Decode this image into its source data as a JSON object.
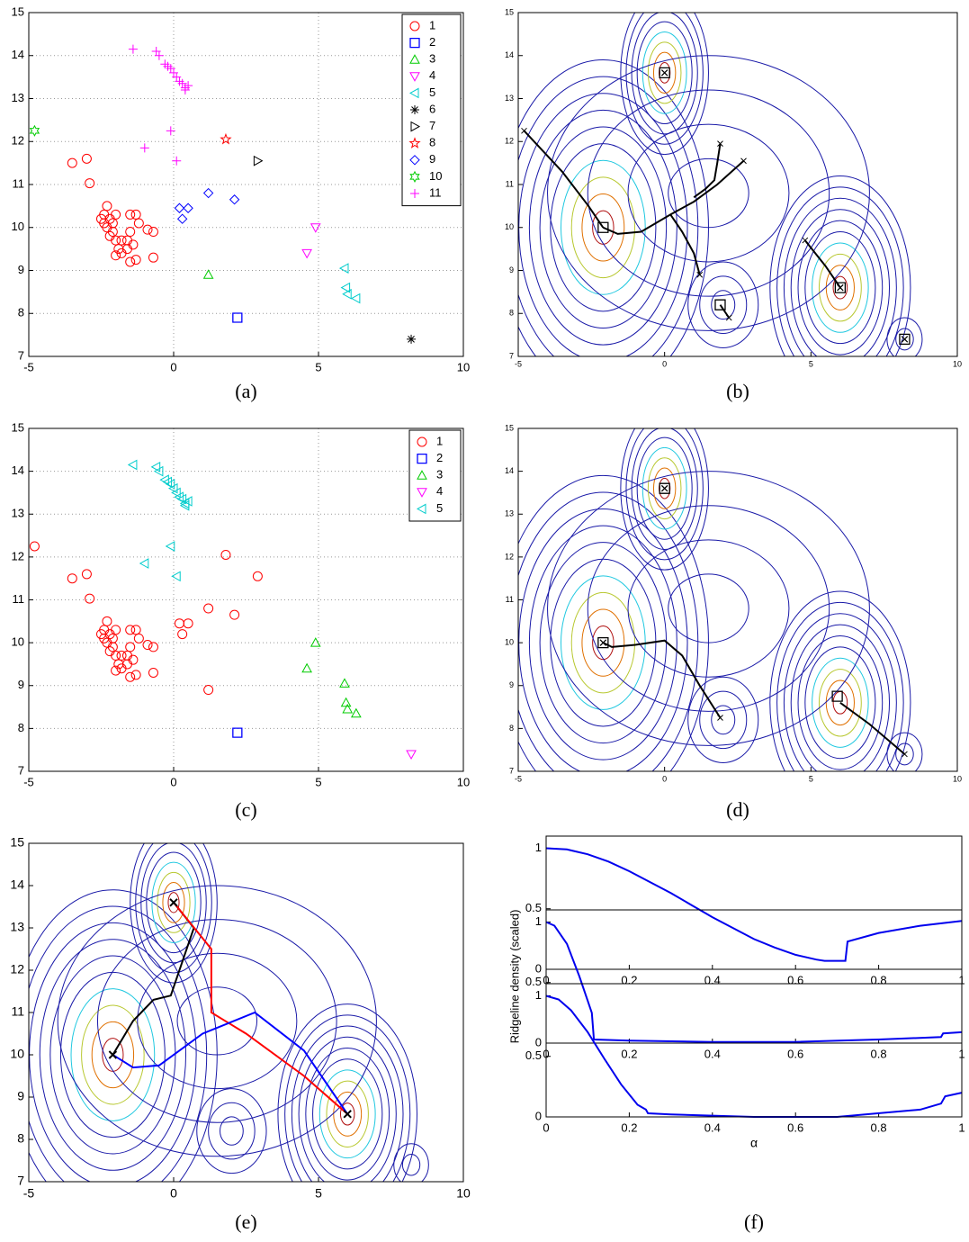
{
  "chart_data": [
    {
      "type": "scatter",
      "caption": "(a)",
      "xlim": [
        -5,
        10
      ],
      "ylim": [
        7,
        15
      ],
      "xticks": [
        -5,
        0,
        5,
        10
      ],
      "yticks": [
        7,
        8,
        9,
        10,
        11,
        12,
        13,
        14,
        15
      ],
      "grid": true,
      "legend": "top-right",
      "series": [
        {
          "name": "1",
          "color": "#ff0000",
          "marker": "circle",
          "x": [
            -3.5,
            -3.0,
            -2.9,
            -2.4,
            -2.3,
            -2.2,
            -2.1,
            -2.0,
            -2.5,
            -2.3,
            -2.1,
            -2.0,
            -1.9,
            -1.8,
            -1.6,
            -1.5,
            -1.3,
            -1.2,
            -1.5,
            -1.4,
            -1.3,
            -1.5,
            -1.6,
            -0.9,
            -0.7,
            -0.7,
            -1.8,
            -2.2,
            -2.4,
            -2.0
          ],
          "values": [
            11.5,
            11.6,
            11.03,
            10.3,
            10.5,
            10.2,
            10.1,
            10.3,
            10.2,
            10.0,
            9.9,
            9.7,
            9.5,
            9.4,
            9.5,
            10.3,
            10.3,
            10.1,
            9.9,
            9.6,
            9.25,
            9.2,
            9.7,
            9.95,
            9.9,
            9.3,
            9.7,
            9.8,
            10.1,
            9.35
          ]
        },
        {
          "name": "2",
          "color": "#0000ff",
          "marker": "square",
          "x": [
            2.2
          ],
          "values": [
            7.9
          ]
        },
        {
          "name": "3",
          "color": "#00cc00",
          "marker": "triangle-up",
          "x": [
            1.2
          ],
          "values": [
            8.9
          ]
        },
        {
          "name": "4",
          "color": "#ff00ff",
          "marker": "triangle-down",
          "x": [
            4.6,
            4.9
          ],
          "values": [
            9.4,
            10.0
          ]
        },
        {
          "name": "5",
          "color": "#00cccc",
          "marker": "triangle-left",
          "x": [
            5.9,
            5.95,
            6.0,
            6.3
          ],
          "values": [
            9.05,
            8.6,
            8.45,
            8.35
          ]
        },
        {
          "name": "6",
          "color": "#000000",
          "marker": "asterisk",
          "x": [
            8.2
          ],
          "values": [
            7.4
          ]
        },
        {
          "name": "7",
          "color": "#000000",
          "marker": "triangle-right",
          "x": [
            2.9
          ],
          "values": [
            11.55
          ]
        },
        {
          "name": "8",
          "color": "#ff0000",
          "marker": "pentagram",
          "x": [
            1.8
          ],
          "values": [
            12.05
          ]
        },
        {
          "name": "9",
          "color": "#0000ff",
          "marker": "diamond",
          "x": [
            0.2,
            0.5,
            0.3,
            1.2,
            2.1
          ],
          "values": [
            10.45,
            10.45,
            10.2,
            10.8,
            10.65
          ]
        },
        {
          "name": "10",
          "color": "#00cc00",
          "marker": "hexagram",
          "x": [
            -4.8
          ],
          "values": [
            12.25
          ]
        },
        {
          "name": "11",
          "color": "#ff00ff",
          "marker": "plus",
          "x": [
            -1.4,
            -0.6,
            -0.5,
            -0.3,
            -0.2,
            -0.1,
            0.0,
            0.1,
            0.2,
            0.3,
            0.4,
            0.5,
            0.4,
            -0.1,
            -1.0,
            0.1
          ],
          "values": [
            14.15,
            14.1,
            14.0,
            13.8,
            13.75,
            13.7,
            13.6,
            13.5,
            13.4,
            13.35,
            13.25,
            13.3,
            13.2,
            12.25,
            11.85,
            11.55
          ]
        }
      ]
    },
    {
      "type": "contour",
      "caption": "(b)",
      "xlim": [
        -5,
        10
      ],
      "ylim": [
        7,
        15
      ],
      "xticks": [
        -5,
        0,
        5,
        10
      ],
      "yticks": [
        7,
        8,
        9,
        10,
        11,
        12,
        13,
        14,
        15
      ],
      "start_marker": "x",
      "modes": [
        {
          "x": -2.1,
          "y": 10.0,
          "marker": "square"
        },
        {
          "x": 0.0,
          "y": 13.6,
          "marker": "square-x"
        },
        {
          "x": 6.0,
          "y": 8.6,
          "marker": "square-x"
        },
        {
          "x": 8.2,
          "y": 7.4,
          "marker": "square-x"
        },
        {
          "x": 1.9,
          "y": 8.2,
          "marker": "square"
        }
      ],
      "paths": [
        {
          "color": "#000000",
          "x": [
            -4.8,
            -3.5,
            -2.6,
            -2.1
          ],
          "y": [
            12.25,
            11.3,
            10.5,
            10.0
          ]
        },
        {
          "color": "#000000",
          "x": [
            2.7,
            1.8,
            1.0,
            0.2,
            -0.8,
            -1.6,
            -2.1
          ],
          "y": [
            11.55,
            11.0,
            10.6,
            10.3,
            9.9,
            9.85,
            10.0
          ]
        },
        {
          "color": "#000000",
          "x": [
            1.9,
            1.8,
            1.7,
            1.4,
            1.0
          ],
          "y": [
            11.95,
            11.5,
            11.1,
            10.9,
            10.7
          ]
        },
        {
          "color": "#000000",
          "x": [
            1.2,
            1.0,
            0.6,
            0.2
          ],
          "y": [
            8.9,
            9.4,
            9.9,
            10.3
          ]
        },
        {
          "color": "#000000",
          "x": [
            2.2,
            1.9
          ],
          "y": [
            7.9,
            8.2
          ]
        },
        {
          "color": "#000000",
          "x": [
            4.8,
            5.5,
            6.0
          ],
          "y": [
            9.7,
            9.1,
            8.6
          ]
        }
      ]
    },
    {
      "type": "scatter",
      "caption": "(c)",
      "xlim": [
        -5,
        10
      ],
      "ylim": [
        7,
        15
      ],
      "xticks": [
        -5,
        0,
        5,
        10
      ],
      "yticks": [
        7,
        8,
        9,
        10,
        11,
        12,
        13,
        14,
        15
      ],
      "grid": true,
      "legend": "top-right",
      "series": [
        {
          "name": "1",
          "color": "#ff0000",
          "marker": "circle",
          "x": [
            -3.5,
            -3.0,
            -2.9,
            -2.4,
            -2.3,
            -2.2,
            -2.1,
            -2.0,
            -2.5,
            -2.3,
            -2.1,
            -2.0,
            -1.9,
            -1.8,
            -1.6,
            -1.5,
            -1.3,
            -1.2,
            -1.5,
            -1.4,
            -1.3,
            -1.5,
            -1.6,
            -0.9,
            -0.7,
            -0.7,
            -1.8,
            -2.2,
            -2.4,
            -2.0,
            -4.8,
            1.8,
            2.9,
            0.2,
            0.5,
            0.3,
            1.2,
            2.1,
            1.2
          ],
          "values": [
            11.5,
            11.6,
            11.03,
            10.3,
            10.5,
            10.2,
            10.1,
            10.3,
            10.2,
            10.0,
            9.9,
            9.7,
            9.5,
            9.4,
            9.5,
            10.3,
            10.3,
            10.1,
            9.9,
            9.6,
            9.25,
            9.2,
            9.7,
            9.95,
            9.9,
            9.3,
            9.7,
            9.8,
            10.1,
            9.35,
            12.25,
            12.05,
            11.55,
            10.45,
            10.45,
            10.2,
            10.8,
            10.65,
            8.9
          ]
        },
        {
          "name": "2",
          "color": "#0000ff",
          "marker": "square",
          "x": [
            2.2
          ],
          "values": [
            7.9
          ]
        },
        {
          "name": "3",
          "color": "#00cc00",
          "marker": "triangle-up",
          "x": [
            4.6,
            4.9,
            5.9,
            5.95,
            6.0,
            6.3
          ],
          "values": [
            9.4,
            10.0,
            9.05,
            8.6,
            8.45,
            8.35
          ]
        },
        {
          "name": "4",
          "color": "#ff00ff",
          "marker": "triangle-down",
          "x": [
            8.2
          ],
          "values": [
            7.4
          ]
        },
        {
          "name": "5",
          "color": "#00cccc",
          "marker": "triangle-left",
          "x": [
            -1.4,
            -0.6,
            -0.5,
            -0.3,
            -0.2,
            -0.1,
            0.0,
            0.1,
            0.2,
            0.3,
            0.4,
            0.5,
            0.4,
            -0.1,
            -1.0,
            0.1
          ],
          "values": [
            14.15,
            14.1,
            14.0,
            13.8,
            13.75,
            13.7,
            13.6,
            13.5,
            13.4,
            13.35,
            13.25,
            13.3,
            13.2,
            12.25,
            11.85,
            11.55
          ]
        }
      ]
    },
    {
      "type": "contour",
      "caption": "(d)",
      "xlim": [
        -5,
        10
      ],
      "ylim": [
        7,
        15
      ],
      "xticks": [
        -5,
        0,
        5,
        10
      ],
      "yticks": [
        7,
        8,
        9,
        10,
        11,
        12,
        13,
        14,
        15
      ],
      "start_marker": "x",
      "modes": [
        {
          "x": -2.1,
          "y": 10.0,
          "marker": "square-x"
        },
        {
          "x": 0.0,
          "y": 13.6,
          "marker": "square-x"
        },
        {
          "x": 5.9,
          "y": 8.75,
          "marker": "square"
        }
      ],
      "paths": [
        {
          "color": "#000000",
          "x": [
            1.9,
            1.2,
            0.6,
            0.0,
            -1.0,
            -1.8,
            -2.1
          ],
          "y": [
            8.25,
            9.0,
            9.7,
            10.05,
            9.95,
            9.9,
            10.0
          ]
        },
        {
          "color": "#000000",
          "x": [
            8.2,
            7.0,
            6.0
          ],
          "y": [
            7.4,
            8.1,
            8.6
          ]
        }
      ]
    },
    {
      "type": "contour",
      "caption": "(e)",
      "xlim": [
        -5,
        10
      ],
      "ylim": [
        7,
        15
      ],
      "xticks": [
        -5,
        0,
        5,
        10
      ],
      "yticks": [
        7,
        8,
        9,
        10,
        11,
        12,
        13,
        14,
        15
      ],
      "modes": [
        {
          "x": -2.1,
          "y": 10.0,
          "marker": "x"
        },
        {
          "x": 0.0,
          "y": 13.6,
          "marker": "x"
        },
        {
          "x": 6.0,
          "y": 8.6,
          "marker": "x"
        }
      ],
      "paths": [
        {
          "color": "#000000",
          "x": [
            -2.1,
            -1.4,
            -0.7,
            -0.1,
            0.7,
            0.0
          ],
          "y": [
            10.0,
            10.8,
            11.3,
            11.4,
            13.0,
            13.6
          ]
        },
        {
          "color": "#ff0000",
          "x": [
            0.0,
            1.3,
            1.3,
            2.5,
            4.5,
            6.0
          ],
          "y": [
            13.6,
            12.5,
            11.0,
            10.5,
            9.5,
            8.6
          ]
        },
        {
          "color": "#0000ff",
          "x": [
            -2.1,
            -1.4,
            -0.5,
            1.0,
            2.8,
            4.5,
            6.0
          ],
          "y": [
            10.0,
            9.7,
            9.75,
            10.5,
            11.0,
            10.1,
            8.6
          ]
        }
      ]
    },
    {
      "type": "line",
      "caption": "(f)",
      "subplots": true,
      "xlabel": "α",
      "ylabel": "Ridgeline density (scaled)",
      "xlim": [
        0,
        1
      ],
      "ylim": [
        0,
        1.1
      ],
      "xticks": [
        0,
        0.2,
        0.4,
        0.6,
        0.8,
        1
      ],
      "yticks": [
        0,
        0.5,
        1
      ],
      "series": [
        {
          "color": "#0000ee",
          "x": [
            0,
            0.05,
            0.1,
            0.15,
            0.2,
            0.25,
            0.3,
            0.35,
            0.4,
            0.45,
            0.5,
            0.55,
            0.6,
            0.65,
            0.67,
            0.72,
            0.725,
            0.8,
            0.9,
            1
          ],
          "values": [
            1,
            0.99,
            0.95,
            0.89,
            0.81,
            0.72,
            0.63,
            0.53,
            0.43,
            0.34,
            0.25,
            0.18,
            0.12,
            0.08,
            0.07,
            0.07,
            0.23,
            0.3,
            0.36,
            0.4
          ]
        },
        {
          "color": "#0000ee",
          "x": [
            0,
            0.02,
            0.05,
            0.08,
            0.1,
            0.11,
            0.115,
            0.2,
            0.4,
            0.6,
            0.8,
            0.95,
            0.955,
            1
          ],
          "values": [
            1,
            0.97,
            0.82,
            0.55,
            0.35,
            0.25,
            0.03,
            0.02,
            0.01,
            0.01,
            0.03,
            0.05,
            0.08,
            0.09
          ]
        },
        {
          "color": "#0000ee",
          "x": [
            0,
            0.03,
            0.06,
            0.1,
            0.14,
            0.18,
            0.22,
            0.24,
            0.245,
            0.3,
            0.5,
            0.7,
            0.9,
            0.95,
            0.96,
            1
          ],
          "values": [
            1,
            0.97,
            0.88,
            0.7,
            0.48,
            0.27,
            0.1,
            0.06,
            0.03,
            0.02,
            0,
            0,
            0.06,
            0.11,
            0.17,
            0.2
          ]
        }
      ]
    }
  ]
}
